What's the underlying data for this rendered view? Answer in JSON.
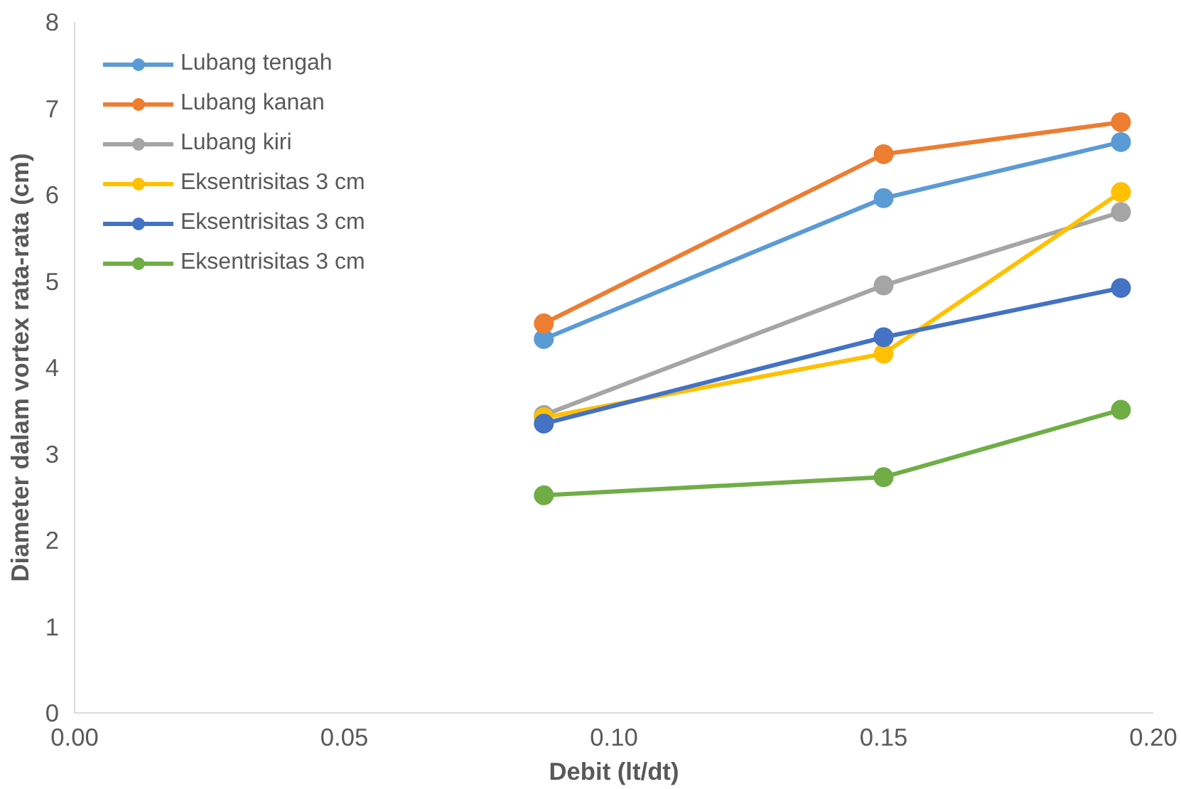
{
  "chart_data": {
    "type": "line",
    "xlabel": "Debit (lt/dt)",
    "ylabel": "Diameter dalam vortex rata-rata (cm)",
    "x": [
      0.087,
      0.15,
      0.194
    ],
    "series": [
      {
        "name": "Lubang tengah",
        "color": "#5b9bd5",
        "values": [
          4.33,
          5.96,
          6.61
        ]
      },
      {
        "name": "Lubang kanan",
        "color": "#ed7d31",
        "values": [
          4.51,
          6.47,
          6.84
        ]
      },
      {
        "name": "Lubang kiri",
        "color": "#a5a5a5",
        "values": [
          3.45,
          4.95,
          5.8
        ]
      },
      {
        "name": "Eksentrisitas 3 cm",
        "color": "#ffc000",
        "values": [
          3.42,
          4.16,
          6.03
        ]
      },
      {
        "name": "Eksentrisitas 3 cm",
        "color": "#4472c4",
        "values": [
          3.35,
          4.35,
          4.92
        ]
      },
      {
        "name": "Eksentrisitas 3 cm",
        "color": "#70ad47",
        "values": [
          2.52,
          2.73,
          3.51
        ]
      }
    ],
    "xlim": [
      0,
      0.2
    ],
    "ylim": [
      0,
      8
    ],
    "xticks": [
      {
        "value": 0,
        "label": "0.00"
      },
      {
        "value": 0.05,
        "label": "0.05"
      },
      {
        "value": 0.1,
        "label": "0.10"
      },
      {
        "value": 0.15,
        "label": "0.15"
      },
      {
        "value": 0.2,
        "label": "0.20"
      }
    ],
    "yticks": [
      0,
      1,
      2,
      3,
      4,
      5,
      6,
      7,
      8
    ],
    "grid": false,
    "legend": "top left",
    "marker": "circle",
    "line_style": "solid"
  }
}
